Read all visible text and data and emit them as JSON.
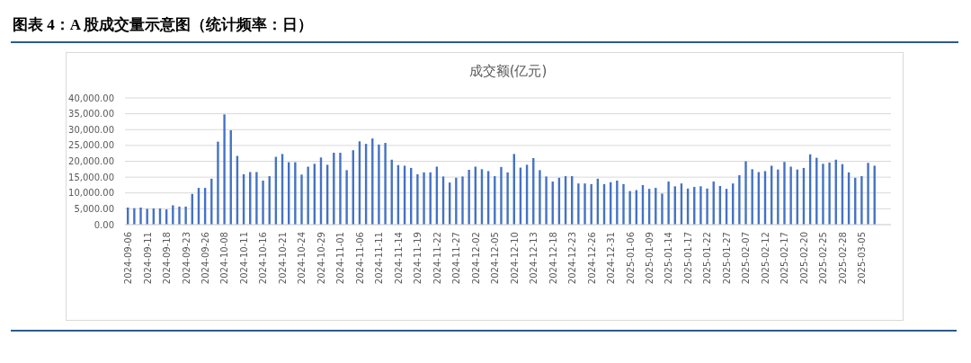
{
  "chart_data": {
    "type": "bar",
    "title": "图表 4：A 股成交量示意图（统计频率：日）",
    "subtitle": "成交额(亿元)",
    "categories": [
      "2024-09-06",
      null,
      null,
      "2024-09-11",
      null,
      null,
      "2024-09-18",
      null,
      null,
      "2024-09-23",
      null,
      null,
      "2024-09-26",
      null,
      null,
      "2024-10-08",
      null,
      null,
      "2024-10-11",
      null,
      null,
      "2024-10-16",
      null,
      null,
      "2024-10-21",
      null,
      null,
      "2024-10-24",
      null,
      null,
      "2024-10-29",
      null,
      null,
      "2024-11-01",
      null,
      null,
      "2024-11-06",
      null,
      null,
      "2024-11-11",
      null,
      null,
      "2024-11-14",
      null,
      null,
      "2024-11-19",
      null,
      null,
      "2024-11-22",
      null,
      null,
      "2024-11-27",
      null,
      null,
      "2024-12-02",
      null,
      null,
      "2024-12-05",
      null,
      null,
      "2024-12-10",
      null,
      null,
      "2024-12-13",
      null,
      null,
      "2024-12-18",
      null,
      null,
      "2024-12-23",
      null,
      null,
      "2024-12-26",
      null,
      null,
      "2024-12-31",
      null,
      null,
      "2025-01-06",
      null,
      null,
      "2025-01-09",
      null,
      null,
      "2025-01-14",
      null,
      null,
      "2025-01-17",
      null,
      null,
      "2025-01-22",
      null,
      null,
      "2025-01-27",
      null,
      null,
      "2025-02-07",
      null,
      null,
      "2025-02-12",
      null,
      null,
      "2025-02-17",
      null,
      null,
      "2025-02-20",
      null,
      null,
      "2025-02-25",
      null,
      null,
      "2025-02-28",
      null,
      null,
      "2025-03-05",
      null,
      null,
      null,
      null
    ],
    "values": [
      5400,
      5200,
      5400,
      5000,
      5100,
      5100,
      4800,
      6100,
      5700,
      5700,
      9700,
      11600,
      11600,
      14500,
      26200,
      34800,
      29800,
      21700,
      15900,
      16600,
      16600,
      13900,
      15300,
      21400,
      22300,
      19700,
      19700,
      15800,
      18300,
      19200,
      21200,
      18900,
      22700,
      22700,
      17200,
      23500,
      26300,
      25500,
      27200,
      25300,
      25800,
      20500,
      18800,
      18600,
      17900,
      15900,
      16500,
      16500,
      18300,
      15200,
      13300,
      14800,
      15200,
      17300,
      18300,
      17500,
      16900,
      15300,
      18200,
      16500,
      22300,
      18000,
      18900,
      21000,
      17200,
      15200,
      13600,
      14800,
      15300,
      15300,
      13000,
      13000,
      12800,
      14500,
      12800,
      13400,
      13900,
      12800,
      10600,
      10900,
      12500,
      11300,
      11600,
      9800,
      13600,
      12100,
      13000,
      11400,
      11900,
      12100,
      11400,
      13600,
      12200,
      11300,
      13000,
      15600,
      20000,
      17500,
      16600,
      16900,
      18600,
      17400,
      19800,
      18300,
      17400,
      17900,
      22200,
      21100,
      19200,
      19600,
      20500,
      19100,
      16500,
      14800,
      15300,
      19500,
      18600,
      null,
      null
    ],
    "color": "#4472c4",
    "ylim": [
      0,
      40000
    ],
    "yticks": [
      {
        "value": 0,
        "label": "0.00"
      },
      {
        "value": 5000,
        "label": "5,000.00"
      },
      {
        "value": 10000,
        "label": "10,000.00"
      },
      {
        "value": 15000,
        "label": "15,000.00"
      },
      {
        "value": 20000,
        "label": "20,000.00"
      },
      {
        "value": 25000,
        "label": "25,000.00"
      },
      {
        "value": 30000,
        "label": "30,000.00"
      },
      {
        "value": 35000,
        "label": "35,000.00"
      },
      {
        "value": 40000,
        "label": "40,000.00"
      }
    ],
    "grid": "y"
  }
}
